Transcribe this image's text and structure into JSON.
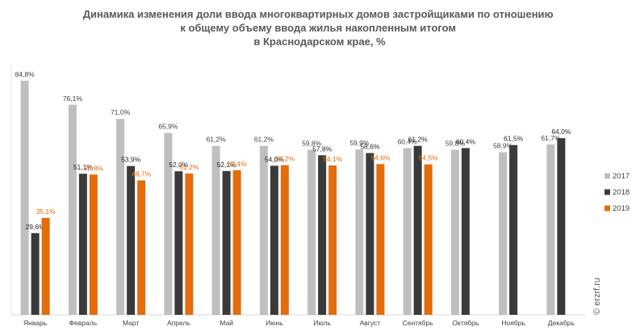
{
  "chart_data": {
    "type": "bar",
    "title": [
      "Динамика изменения доли ввода многоквартирных домов застройщиками по отношению",
      "к общему объему ввода жилья накопленным итогом",
      "в Краснодарском крае, %"
    ],
    "categories": [
      "Январь",
      "Февраль",
      "Март",
      "Апрель",
      "Май",
      "Июнь",
      "Июль",
      "Август",
      "Сентябрь",
      "Октябрь",
      "Ноябрь",
      "Декабрь"
    ],
    "series": [
      {
        "name": "2017",
        "color": "#bfbfbf",
        "label_color": "#404040",
        "values": [
          84.8,
          76.1,
          71.0,
          65.9,
          61.2,
          61.2,
          59.8,
          59.9,
          60.4,
          59.8,
          58.9,
          61.7
        ],
        "value_labels": [
          "84,8%",
          "76,1%",
          "71,0%",
          "65,9%",
          "61,2%",
          "61,2%",
          "59,8%",
          "59,9%",
          "60,4%",
          "59,8%",
          "58,9%",
          "61,7%"
        ]
      },
      {
        "name": "2018",
        "color": "#3a3a3a",
        "label_color": "#262626",
        "values": [
          29.6,
          51.1,
          53.9,
          52.0,
          52.1,
          54.0,
          57.8,
          58.6,
          61.2,
          60.4,
          61.5,
          64.0
        ],
        "value_labels": [
          "29,6%",
          "51,1%",
          "53,9%",
          "52,0%",
          "52,1%",
          "54,0%",
          "57,8%",
          "58,6%",
          "61,2%",
          "60,4%",
          "61,5%",
          "64,0%"
        ]
      },
      {
        "name": "2019",
        "color": "#e46c0a",
        "label_color": "#e46c0a",
        "values": [
          35.1,
          50.8,
          48.7,
          51.2,
          52.4,
          54.2,
          54.1,
          54.6,
          54.5,
          null,
          null,
          null
        ],
        "value_labels": [
          "35,1%",
          "50,8%",
          "48,7%",
          "51,2%",
          "52,4%",
          "54,2%",
          "54,1%",
          "54,6%",
          "54,5%",
          null,
          null,
          null
        ]
      }
    ],
    "watermark": "© erzrf.ru"
  }
}
